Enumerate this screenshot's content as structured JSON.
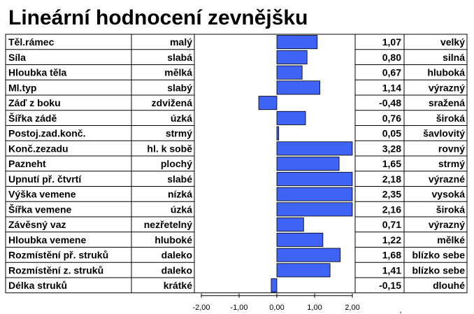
{
  "title": "Lineární hodnocení zevnějšku",
  "chart_data": {
    "type": "bar",
    "orientation": "horizontal",
    "xlim": [
      -2,
      2
    ],
    "xticks": [
      "-2,00",
      "-1,00",
      "0,00",
      "1,00",
      "2,00"
    ],
    "stray_mark": ",",
    "bar_color": "#3f63f5",
    "rows": [
      {
        "trait": "Těl.rámec",
        "low": "malý",
        "value": 1.07,
        "value_label": "1,07",
        "high": "velký"
      },
      {
        "trait": "Síla",
        "low": "slabá",
        "value": 0.8,
        "value_label": "0,80",
        "high": "silná"
      },
      {
        "trait": "Hloubka těla",
        "low": "mělká",
        "value": 0.67,
        "value_label": "0,67",
        "high": "hluboká"
      },
      {
        "trait": "Ml.typ",
        "low": "slabý",
        "value": 1.14,
        "value_label": "1,14",
        "high": "výrazný"
      },
      {
        "trait": "Záď z boku",
        "low": "zdvižená",
        "value": -0.48,
        "value_label": "-0,48",
        "high": "sražená"
      },
      {
        "trait": "Šířka zádě",
        "low": "úzká",
        "value": 0.76,
        "value_label": "0,76",
        "high": "široká"
      },
      {
        "trait": "Postoj.zad.konč.",
        "low": "strmý",
        "value": 0.05,
        "value_label": "0,05",
        "high": "šavlovitý"
      },
      {
        "trait": "Konč.zezadu",
        "low": "hl.  k sobě",
        "value": 3.28,
        "value_label": "3,28",
        "high": "rovný"
      },
      {
        "trait": "Pazneht",
        "low": "plochý",
        "value": 1.65,
        "value_label": "1,65",
        "high": "strmý"
      },
      {
        "trait": "Upnutí př. čtvrtí",
        "low": "slabé",
        "value": 2.18,
        "value_label": "2,18",
        "high": "výrazné"
      },
      {
        "trait": "Výška vemene",
        "low": "nízká",
        "value": 2.35,
        "value_label": "2,35",
        "high": "vysoká"
      },
      {
        "trait": "Šířka vemene",
        "low": "úzká",
        "value": 2.16,
        "value_label": "2,16",
        "high": "široká"
      },
      {
        "trait": "Závěsný vaz",
        "low": "nezřetelný",
        "value": 0.71,
        "value_label": "0,71",
        "high": "výrazný"
      },
      {
        "trait": "Hloubka vemene",
        "low": "hluboké",
        "value": 1.22,
        "value_label": "1,22",
        "high": "mělké"
      },
      {
        "trait": "Rozmístění  př. struků",
        "low": "daleko",
        "value": 1.68,
        "value_label": "1,68",
        "high": "blízko sebe"
      },
      {
        "trait": "Rozmístění  z. struků",
        "low": "daleko",
        "value": 1.41,
        "value_label": "1,41",
        "high": "blízko sebe"
      },
      {
        "trait": "Délka struků",
        "low": "krátké",
        "value": -0.15,
        "value_label": "-0,15",
        "high": "dlouhé"
      }
    ]
  }
}
